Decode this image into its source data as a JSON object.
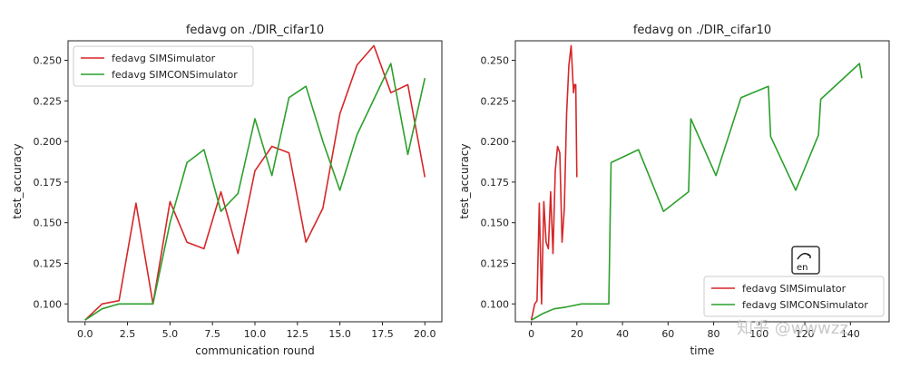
{
  "chart_data": [
    {
      "type": "line",
      "title": "fedavg on ./DIR_cifar10",
      "xlabel": "communication round",
      "ylabel": "test_accuracy",
      "xlim": [
        -1,
        21
      ],
      "ylim": [
        0.089,
        0.262
      ],
      "xticks": [
        0,
        2.5,
        5,
        7.5,
        10,
        12.5,
        15,
        17.5,
        20
      ],
      "xtick_labels": [
        "0.0",
        "2.5",
        "5.0",
        "7.5",
        "10.0",
        "12.5",
        "15.0",
        "17.5",
        "20.0"
      ],
      "yticks": [
        0.1,
        0.125,
        0.15,
        0.175,
        0.2,
        0.225,
        0.25
      ],
      "ytick_labels": [
        "0.100",
        "0.125",
        "0.150",
        "0.175",
        "0.200",
        "0.225",
        "0.250"
      ],
      "legend": "top-left",
      "grid": false,
      "series": [
        {
          "name": "fedavg SIMSimulator",
          "color": "#d62728",
          "x": [
            0,
            1,
            2,
            3,
            4,
            5,
            6,
            7,
            8,
            9,
            10,
            11,
            12,
            13,
            14,
            15,
            16,
            17,
            18,
            19,
            20
          ],
          "y": [
            0.09,
            0.1,
            0.102,
            0.162,
            0.1,
            0.163,
            0.138,
            0.134,
            0.169,
            0.131,
            0.182,
            0.197,
            0.193,
            0.138,
            0.159,
            0.217,
            0.247,
            0.259,
            0.23,
            0.235,
            0.178
          ]
        },
        {
          "name": "fedavg SIMCONSimulator",
          "color": "#2ca02c",
          "x": [
            0,
            1,
            2,
            3,
            4,
            5,
            6,
            7,
            8,
            9,
            10,
            11,
            12,
            13,
            14,
            15,
            16,
            17,
            18,
            19,
            20
          ],
          "y": [
            0.09,
            0.097,
            0.1,
            0.1,
            0.1,
            0.15,
            0.187,
            0.195,
            0.157,
            0.168,
            0.214,
            0.179,
            0.227,
            0.234,
            0.2,
            0.17,
            0.204,
            0.226,
            0.248,
            0.192,
            0.239
          ]
        }
      ]
    },
    {
      "type": "line",
      "title": "fedavg on ./DIR_cifar10",
      "xlabel": "time",
      "ylabel": "test_accuracy",
      "xlim": [
        -7,
        157
      ],
      "ylim": [
        0.089,
        0.262
      ],
      "xticks": [
        0,
        20,
        40,
        60,
        80,
        100,
        120,
        140
      ],
      "xtick_labels": [
        "0",
        "20",
        "40",
        "60",
        "80",
        "100",
        "120",
        "140"
      ],
      "yticks": [
        0.1,
        0.125,
        0.15,
        0.175,
        0.2,
        0.225,
        0.25
      ],
      "ytick_labels": [
        "0.100",
        "0.125",
        "0.150",
        "0.175",
        "0.200",
        "0.225",
        "0.250"
      ],
      "legend": "bottom-right",
      "grid": false,
      "series": [
        {
          "name": "fedavg SIMSimulator",
          "color": "#d62728",
          "x": [
            0,
            1.5,
            2.5,
            3.5,
            4.5,
            5.5,
            6.5,
            7.5,
            8.5,
            9.5,
            10.5,
            11.5,
            12.5,
            13.5,
            14.5,
            15.5,
            16.5,
            17.5,
            18.5,
            19,
            19.5,
            20
          ],
          "y": [
            0.09,
            0.1,
            0.102,
            0.162,
            0.1,
            0.163,
            0.138,
            0.134,
            0.169,
            0.131,
            0.182,
            0.197,
            0.193,
            0.138,
            0.159,
            0.217,
            0.247,
            0.259,
            0.23,
            0.235,
            0.235,
            0.178
          ]
        },
        {
          "name": "fedavg SIMCONSimulator",
          "color": "#2ca02c",
          "x": [
            0,
            5,
            10,
            15,
            22,
            28,
            34,
            35,
            47,
            58,
            69,
            70,
            81,
            92,
            104,
            105,
            116,
            126,
            127,
            144,
            145
          ],
          "y": [
            0.09,
            0.094,
            0.097,
            0.098,
            0.1,
            0.1,
            0.1,
            0.187,
            0.195,
            0.157,
            0.169,
            0.214,
            0.179,
            0.227,
            0.234,
            0.203,
            0.17,
            0.204,
            0.226,
            0.248,
            0.239
          ]
        }
      ]
    }
  ],
  "watermark": {
    "text": "知乎 @wwwzz"
  },
  "translate_badge": {
    "label": "en",
    "icon": "translate-icon"
  }
}
